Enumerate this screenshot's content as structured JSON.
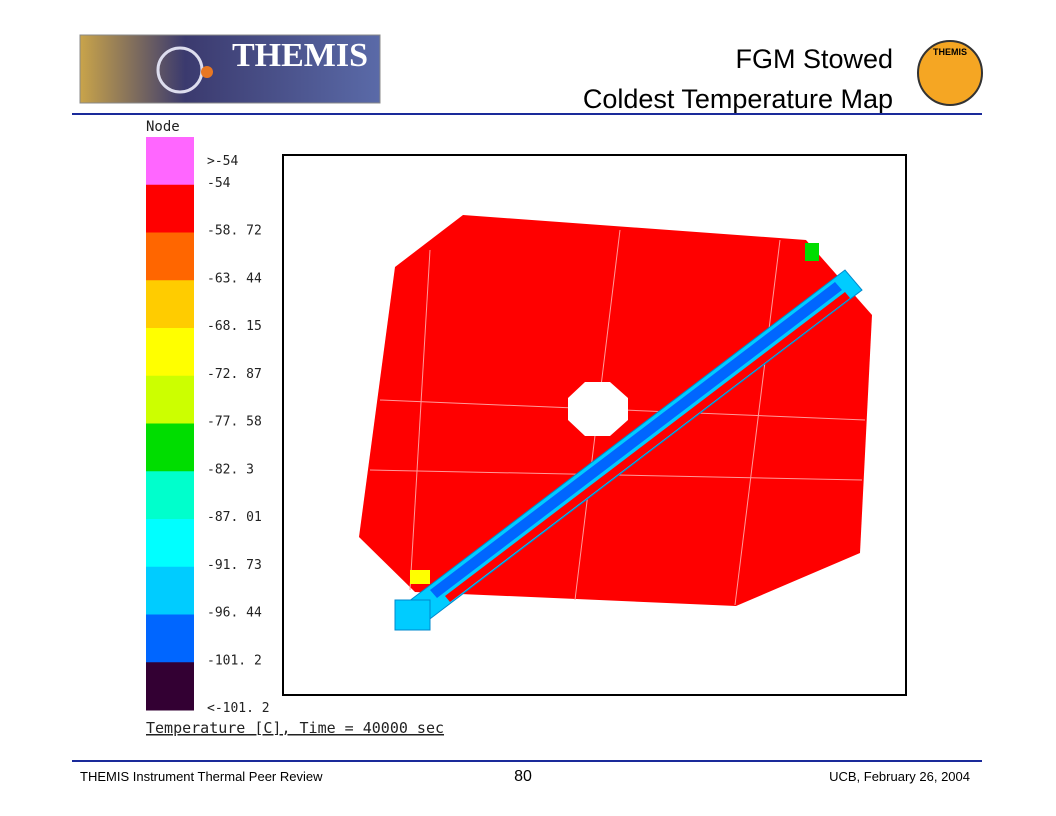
{
  "header": {
    "logo_text": "THEMIS",
    "title_lines": [
      "FGM Stowed",
      "Coldest Temperature Map"
    ],
    "badge_text": "THEMIS"
  },
  "legend": {
    "title": "Node",
    "labels": [
      ">-54",
      "-54",
      "-58. 72",
      "-63. 44",
      "-68. 15",
      "-72. 87",
      "-77. 58",
      "-82. 3",
      "-87. 01",
      "-91. 73",
      "-96. 44",
      "-101. 2",
      "<-101. 2"
    ],
    "colors": [
      "#ff66ff",
      "#ff0000",
      "#ff6600",
      "#ffcc00",
      "#ffff00",
      "#ccff00",
      "#00dd00",
      "#00ffcc",
      "#00ffff",
      "#00ccff",
      "#0066ff",
      "#330033"
    ]
  },
  "caption": "Temperature [C], Time = 40000 sec",
  "footer": {
    "left": "THEMIS Instrument Thermal Peer Review",
    "page": "80",
    "right": "UCB, February 26, 2004"
  }
}
